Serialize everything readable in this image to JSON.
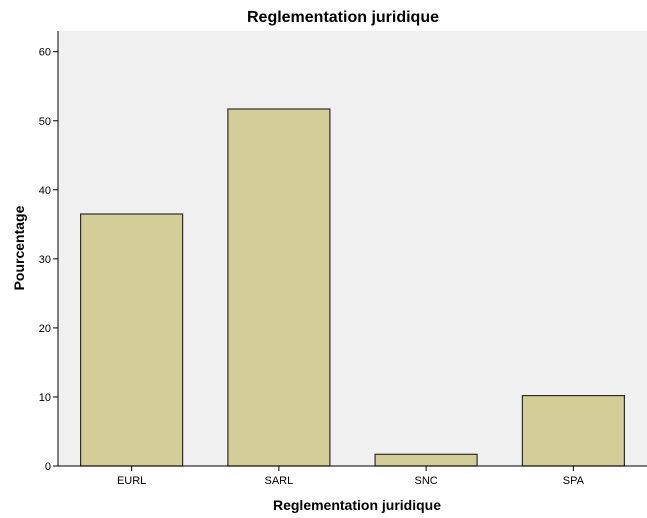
{
  "chart_data": {
    "type": "bar",
    "title": "Reglementation juridique",
    "xlabel": "Reglementation juridique",
    "ylabel": "Pourcentage",
    "categories": [
      "EURL",
      "SARL",
      "SNC",
      "SPA"
    ],
    "values": [
      36.5,
      51.7,
      1.7,
      10.2
    ],
    "ylim": [
      0,
      63
    ],
    "yticks": [
      0,
      10,
      20,
      30,
      40,
      50,
      60
    ],
    "grid": false,
    "legend": "none",
    "colors": {
      "plot_background": "#f0f0f0",
      "bar_fill": "#d3ce97",
      "bar_stroke": "#2e2e2e",
      "axis": "#000000"
    }
  }
}
